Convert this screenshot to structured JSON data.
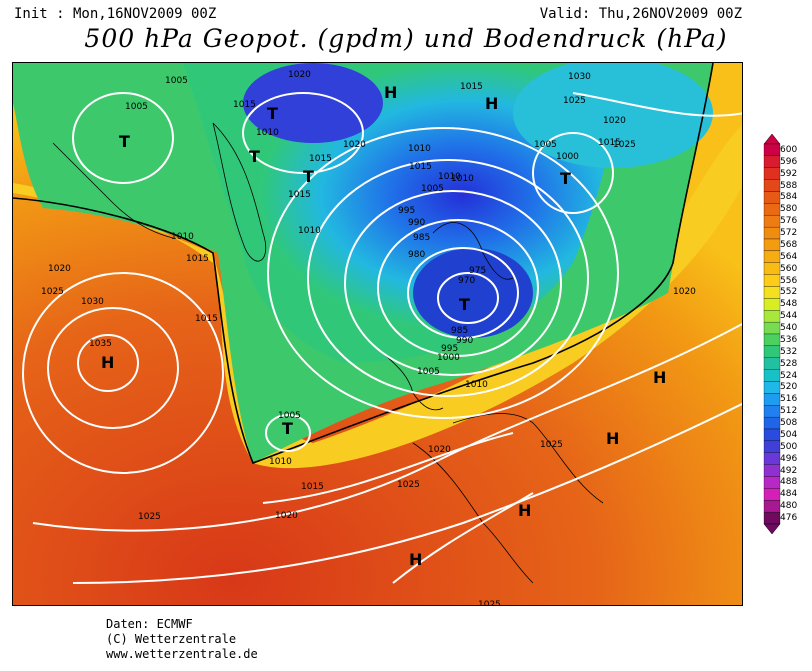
{
  "header": {
    "init": "Init : Mon,16NOV2009 00Z",
    "valid": "Valid: Thu,26NOV2009 00Z",
    "title": "500 hPa Geopot. (gpdm) und Bodendruck (hPa)"
  },
  "footer": {
    "line1": "Daten: ECMWF",
    "line2": "(C) Wetterzentrale",
    "line3": "www.wetterzentrale.de"
  },
  "colorbar": {
    "labels": [
      "600",
      "596",
      "592",
      "588",
      "584",
      "580",
      "576",
      "572",
      "568",
      "564",
      "560",
      "556",
      "552",
      "548",
      "544",
      "540",
      "536",
      "532",
      "528",
      "524",
      "520",
      "516",
      "512",
      "508",
      "504",
      "500",
      "496",
      "492",
      "488",
      "484",
      "480",
      "476"
    ],
    "colors": [
      "#cc0044",
      "#d81b2e",
      "#e03020",
      "#e24818",
      "#e65a16",
      "#ea6a14",
      "#ee7c12",
      "#f08c10",
      "#f49c10",
      "#f6ac12",
      "#f8bc14",
      "#fccc18",
      "#f4e020",
      "#d8ee22",
      "#a8e83a",
      "#78dc50",
      "#4cd060",
      "#30c878",
      "#20c0a0",
      "#18c0c8",
      "#20b8e8",
      "#1e9cf0",
      "#2080f0",
      "#2064e8",
      "#2a4ae0",
      "#4040d8",
      "#6a38d8",
      "#9030d0",
      "#b828c8",
      "#d420b8",
      "#a81890",
      "#700a60"
    ]
  },
  "map": {
    "pressure_labels": [
      "1005",
      "1005",
      "1020",
      "1015",
      "1030",
      "1025",
      "1020",
      "1015",
      "1010",
      "1015",
      "1015",
      "1010",
      "1015",
      "1020",
      "1010",
      "1005",
      "1005",
      "1000",
      "1015",
      "1010",
      "995",
      "990",
      "985",
      "980",
      "975",
      "970",
      "1010",
      "1020",
      "1025",
      "1030",
      "1015",
      "1035",
      "1000",
      "995",
      "990",
      "985",
      "1005",
      "1010",
      "1020",
      "1005",
      "1010",
      "1015",
      "1020",
      "1025",
      "1020",
      "1025",
      "1025",
      "1025",
      "1025",
      "1015",
      "1010"
    ],
    "symbols": [
      "T",
      "T",
      "T",
      "T",
      "T",
      "T",
      "T",
      "H",
      "H",
      "H",
      "H",
      "H",
      "H",
      "H"
    ]
  }
}
